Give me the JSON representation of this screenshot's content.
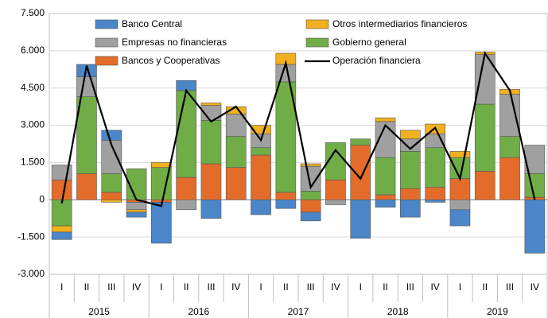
{
  "chart_data": {
    "type": "stacked-bar-line",
    "categories": [
      "I",
      "II",
      "III",
      "IV",
      "I",
      "II",
      "III",
      "IV",
      "I",
      "II",
      "III",
      "IV",
      "I",
      "II",
      "III",
      "IV",
      "I",
      "II",
      "III",
      "IV"
    ],
    "x_groups": [
      "2015",
      "2016",
      "2017",
      "2018",
      "2019"
    ],
    "series": [
      {
        "name": "Banco Central",
        "color": "#4a86c8",
        "values": [
          -300,
          500,
          400,
          -200,
          -1650,
          400,
          -750,
          0,
          -600,
          -350,
          -350,
          0,
          -1550,
          -300,
          -700,
          -100,
          -650,
          0,
          0,
          -2150
        ]
      },
      {
        "name": "Otros intermediarios financieros",
        "color": "#f0b020",
        "values": [
          -250,
          0,
          -100,
          -100,
          200,
          0,
          100,
          300,
          350,
          450,
          100,
          0,
          0,
          150,
          350,
          400,
          250,
          100,
          200,
          0
        ]
      },
      {
        "name": "Empresas no financieras",
        "color": "#a0a0a0",
        "values": [
          600,
          800,
          1350,
          -300,
          0,
          -400,
          600,
          900,
          550,
          700,
          1000,
          -200,
          0,
          1450,
          500,
          550,
          -400,
          2000,
          1700,
          1150
        ]
      },
      {
        "name": "Gobierno general",
        "color": "#70ad47",
        "values": [
          -1050,
          3100,
          750,
          1250,
          1300,
          3500,
          1750,
          1250,
          300,
          4450,
          350,
          1500,
          250,
          1500,
          1500,
          1600,
          850,
          2700,
          850,
          950
        ]
      },
      {
        "name": "Bancos y Cooperativas",
        "color": "#e46c2a",
        "values": [
          800,
          1050,
          300,
          -100,
          -100,
          900,
          1450,
          1300,
          1800,
          300,
          -500,
          800,
          2200,
          200,
          450,
          500,
          850,
          1150,
          1700,
          100
        ]
      }
    ],
    "line": {
      "name": "Operación financiera",
      "color": "#000000",
      "values": [
        -150,
        5400,
        2200,
        0,
        -250,
        4400,
        3150,
        3750,
        2400,
        5500,
        500,
        2000,
        850,
        3000,
        2050,
        2900,
        850,
        5900,
        4400,
        0
      ]
    },
    "ylim": [
      -3000,
      7500
    ],
    "yticks": [
      {
        "value": -3000,
        "label": "-3.000"
      },
      {
        "value": -1500,
        "label": "-1.500"
      },
      0,
      {
        "value": 1500,
        "label": "1.500"
      },
      {
        "value": 3000,
        "label": "3.000"
      },
      {
        "value": 4500,
        "label": "4.500"
      },
      {
        "value": 6000,
        "label": "6.000"
      },
      {
        "value": 7500,
        "label": "7.500"
      }
    ],
    "grid": true
  }
}
